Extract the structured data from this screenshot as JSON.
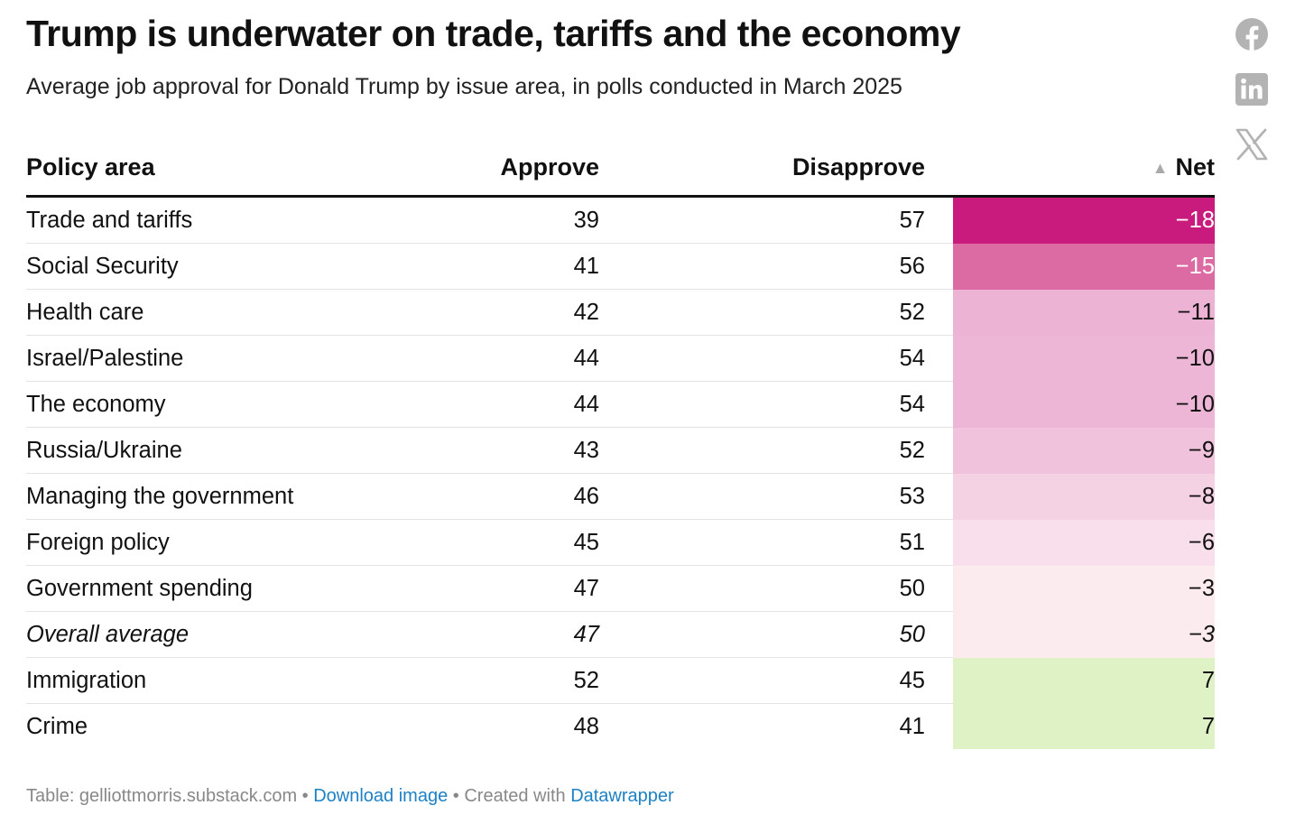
{
  "header": {
    "title": "Trump is underwater on trade, tariffs and the economy",
    "subtitle": "Average job approval for Donald Trump by issue area, in polls conducted in March 2025"
  },
  "share": {
    "icons": [
      "facebook-icon",
      "linkedin-icon",
      "x-icon"
    ],
    "icon_color": "#b3b3b3"
  },
  "table": {
    "columns": [
      "Policy area",
      "Approve",
      "Disapprove",
      "Net"
    ],
    "sort_indicator": "▲"
  },
  "chart_data": {
    "type": "table",
    "title": "Trump is underwater on trade, tariffs and the economy",
    "subtitle": "Average job approval for Donald Trump by issue area, in polls conducted in March 2025",
    "columns": [
      "Policy area",
      "Approve",
      "Disapprove",
      "Net"
    ],
    "sorted_by": "Net",
    "sort_order": "ascending",
    "color_column": "Net",
    "rows": [
      {
        "area": "Trade and tariffs",
        "approve": "39",
        "disapprove": "57",
        "net": "−18",
        "net_value": -18,
        "color": "#c81b7d",
        "text_color": "#ffffff",
        "italic": false
      },
      {
        "area": "Social Security",
        "approve": "41",
        "disapprove": "56",
        "net": "−15",
        "net_value": -15,
        "color": "#dc6aa3",
        "text_color": "#ffffff",
        "italic": false
      },
      {
        "area": "Health care",
        "approve": "42",
        "disapprove": "52",
        "net": "−11",
        "net_value": -11,
        "color": "#edb3d4",
        "text_color": "#111111",
        "italic": false
      },
      {
        "area": "Israel/Palestine",
        "approve": "44",
        "disapprove": "54",
        "net": "−10",
        "net_value": -10,
        "color": "#eeb6d6",
        "text_color": "#111111",
        "italic": false
      },
      {
        "area": "The economy",
        "approve": "44",
        "disapprove": "54",
        "net": "−10",
        "net_value": -10,
        "color": "#eeb6d6",
        "text_color": "#111111",
        "italic": false
      },
      {
        "area": "Russia/Ukraine",
        "approve": "43",
        "disapprove": "52",
        "net": "−9",
        "net_value": -9,
        "color": "#f1c2dc",
        "text_color": "#111111",
        "italic": false
      },
      {
        "area": "Managing the government",
        "approve": "46",
        "disapprove": "53",
        "net": "−8",
        "net_value": -8,
        "color": "#f5d1e4",
        "text_color": "#111111",
        "italic": false
      },
      {
        "area": "Foreign policy",
        "approve": "45",
        "disapprove": "51",
        "net": "−6",
        "net_value": -6,
        "color": "#f9dfec",
        "text_color": "#111111",
        "italic": false
      },
      {
        "area": "Government spending",
        "approve": "47",
        "disapprove": "50",
        "net": "−3",
        "net_value": -3,
        "color": "#fbeaee",
        "text_color": "#111111",
        "italic": false
      },
      {
        "area": "Overall average",
        "approve": "47",
        "disapprove": "50",
        "net": "−3",
        "net_value": -3,
        "color": "#fbeaee",
        "text_color": "#111111",
        "italic": true
      },
      {
        "area": "Immigration",
        "approve": "52",
        "disapprove": "45",
        "net": "7",
        "net_value": 7,
        "color": "#dff2c6",
        "text_color": "#111111",
        "italic": false
      },
      {
        "area": "Crime",
        "approve": "48",
        "disapprove": "41",
        "net": "7",
        "net_value": 7,
        "color": "#dff2c6",
        "text_color": "#111111",
        "italic": false
      }
    ]
  },
  "footer": {
    "source": "Table: gelliottmorris.substack.com",
    "separator": " • ",
    "download_label": "Download image",
    "created_with": "Created with",
    "datawrapper_label": "Datawrapper",
    "link_color": "#1d81c4"
  }
}
